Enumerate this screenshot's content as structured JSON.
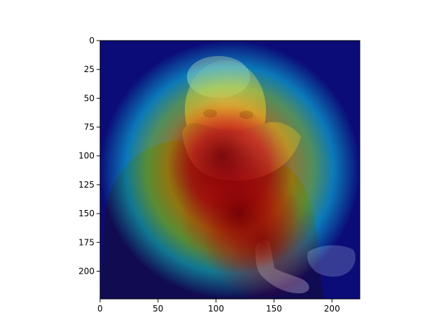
{
  "chart_data": {
    "type": "heatmap",
    "title": "",
    "xlabel": "",
    "ylabel": "",
    "xlim": [
      0,
      224
    ],
    "ylim": [
      224,
      0
    ],
    "x_ticks": [
      0,
      50,
      100,
      150,
      200
    ],
    "y_ticks": [
      0,
      25,
      50,
      75,
      100,
      125,
      150,
      175,
      200
    ],
    "colormap": "jet",
    "grid": false,
    "legend": "none",
    "hotspots": [
      {
        "x": 105,
        "y": 100,
        "intensity": 0.7
      },
      {
        "x": 140,
        "y": 175,
        "intensity": 0.8
      },
      {
        "x": 120,
        "y": 150,
        "intensity": 0.9
      }
    ]
  }
}
